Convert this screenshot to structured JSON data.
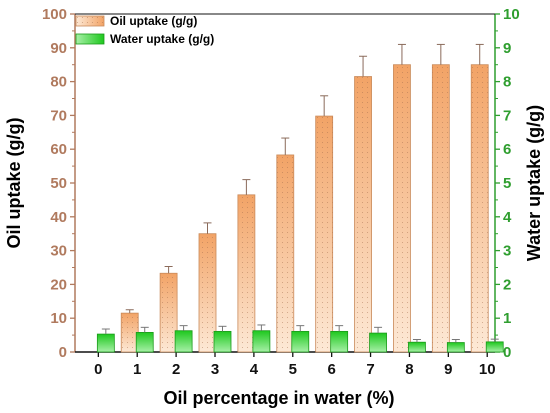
{
  "chart_data": {
    "type": "bar",
    "categories": [
      "0",
      "1",
      "2",
      "3",
      "4",
      "5",
      "6",
      "7",
      "8",
      "9",
      "10"
    ],
    "series": [
      {
        "name": "Oil uptake (g/g)",
        "axis": "left",
        "values": [
          null,
          11.5,
          23.3,
          35.0,
          46.5,
          58.3,
          69.8,
          81.5,
          85.0,
          85.0,
          85.0
        ],
        "errors": [
          null,
          1.0,
          2.0,
          3.2,
          4.5,
          5.0,
          6.0,
          6.0,
          6.0,
          6.0,
          6.0
        ],
        "color": "#f2a971"
      },
      {
        "name": "Water uptake (g/g)",
        "axis": "right",
        "values": [
          0.53,
          0.58,
          0.63,
          0.61,
          0.63,
          0.61,
          0.61,
          0.56,
          0.29,
          0.28,
          0.3
        ],
        "errors": [
          0.15,
          0.15,
          0.15,
          0.15,
          0.17,
          0.17,
          0.17,
          0.17,
          0.08,
          0.09,
          0.08
        ],
        "color": "#22cc22"
      }
    ],
    "xlabel": "Oil percentage in water (%)",
    "ylabel": "Oil uptake (g/g)",
    "y2label": "Water uptake (g/g)",
    "ylim": [
      0,
      100
    ],
    "y2lim": [
      0,
      10
    ],
    "yticks": [
      "0",
      "10",
      "20",
      "30",
      "40",
      "50",
      "60",
      "70",
      "80",
      "90",
      "100"
    ],
    "y2ticks": [
      "0",
      "1",
      "2",
      "3",
      "4",
      "5",
      "6",
      "7",
      "8",
      "9",
      "10"
    ],
    "grid": false,
    "legend": "top-left",
    "colors": {
      "left_axis": "#b07a5e",
      "right_axis": "#2f9e2f"
    }
  }
}
